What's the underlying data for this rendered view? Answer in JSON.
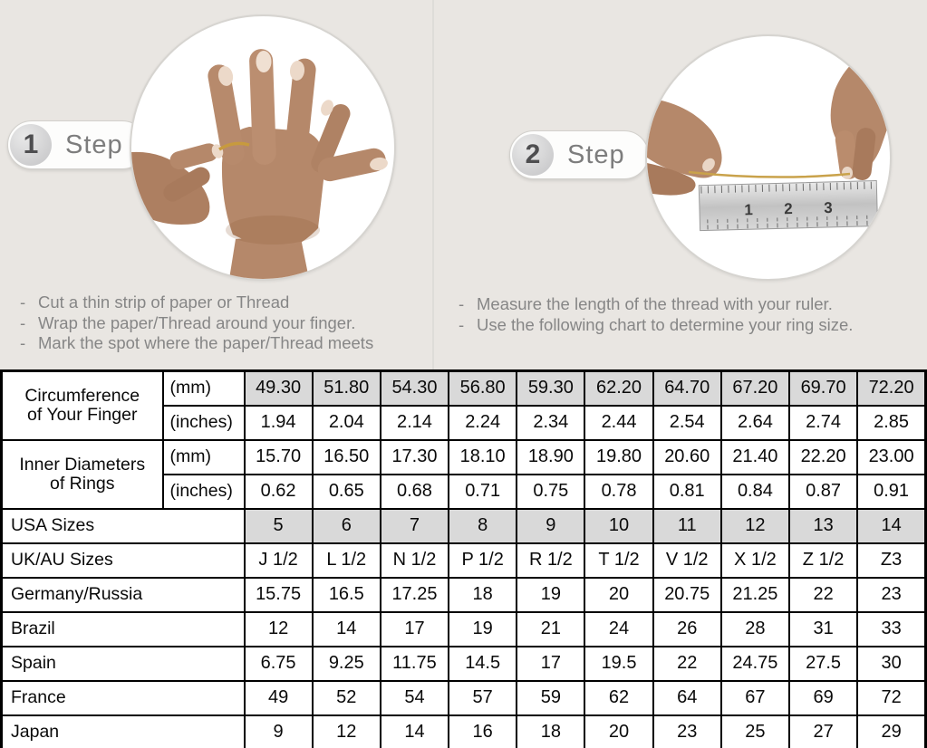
{
  "page": {
    "background": "#e9e6e2",
    "highlight_gray": "#d9d9d9",
    "table_border": "#000000"
  },
  "bullet": "-",
  "steps": [
    {
      "number": "1",
      "label": "Step",
      "photo": "hand-with-thread-photo",
      "instructions": [
        "Cut a thin strip of paper or Thread",
        "Wrap the paper/Thread around your finger.",
        "Mark the spot where the paper/Thread meets"
      ]
    },
    {
      "number": "2",
      "label": "Step",
      "photo": "thread-on-ruler-photo",
      "ruler_numbers": [
        "1",
        "2",
        "3"
      ],
      "instructions": [
        "Measure the length of the thread with your ruler.",
        "Use the following chart to determine your ring size."
      ]
    }
  ],
  "table": {
    "groups": [
      {
        "label": "Circumference of Your Finger",
        "rows": [
          {
            "unit": "(mm)",
            "highlight": true,
            "values": [
              "49.30",
              "51.80",
              "54.30",
              "56.80",
              "59.30",
              "62.20",
              "64.70",
              "67.20",
              "69.70",
              "72.20"
            ]
          },
          {
            "unit": "(inches)",
            "highlight": false,
            "values": [
              "1.94",
              "2.04",
              "2.14",
              "2.24",
              "2.34",
              "2.44",
              "2.54",
              "2.64",
              "2.74",
              "2.85"
            ]
          }
        ]
      },
      {
        "label": "Inner Diameters of Rings",
        "rows": [
          {
            "unit": "(mm)",
            "highlight": false,
            "values": [
              "15.70",
              "16.50",
              "17.30",
              "18.10",
              "18.90",
              "19.80",
              "20.60",
              "21.40",
              "22.20",
              "23.00"
            ]
          },
          {
            "unit": "(inches)",
            "highlight": false,
            "values": [
              "0.62",
              "0.65",
              "0.68",
              "0.71",
              "0.75",
              "0.78",
              "0.81",
              "0.84",
              "0.87",
              "0.91"
            ]
          }
        ]
      }
    ],
    "rows": [
      {
        "label": "USA Sizes",
        "highlight": true,
        "values": [
          "5",
          "6",
          "7",
          "8",
          "9",
          "10",
          "11",
          "12",
          "13",
          "14"
        ]
      },
      {
        "label": "UK/AU Sizes",
        "highlight": false,
        "values": [
          "J 1/2",
          "L 1/2",
          "N 1/2",
          "P 1/2",
          "R 1/2",
          "T 1/2",
          "V 1/2",
          "X 1/2",
          "Z 1/2",
          "Z3"
        ]
      },
      {
        "label": "Germany/Russia",
        "highlight": false,
        "values": [
          "15.75",
          "16.5",
          "17.25",
          "18",
          "19",
          "20",
          "20.75",
          "21.25",
          "22",
          "23"
        ]
      },
      {
        "label": "Brazil",
        "highlight": false,
        "values": [
          "12",
          "14",
          "17",
          "19",
          "21",
          "24",
          "26",
          "28",
          "31",
          "33"
        ]
      },
      {
        "label": "Spain",
        "highlight": false,
        "values": [
          "6.75",
          "9.25",
          "11.75",
          "14.5",
          "17",
          "19.5",
          "22",
          "24.75",
          "27.5",
          "30"
        ]
      },
      {
        "label": "France",
        "highlight": false,
        "values": [
          "49",
          "52",
          "54",
          "57",
          "59",
          "62",
          "64",
          "67",
          "69",
          "72"
        ]
      },
      {
        "label": "Japan",
        "highlight": false,
        "values": [
          "9",
          "12",
          "14",
          "16",
          "18",
          "20",
          "23",
          "25",
          "27",
          "29"
        ]
      }
    ]
  }
}
